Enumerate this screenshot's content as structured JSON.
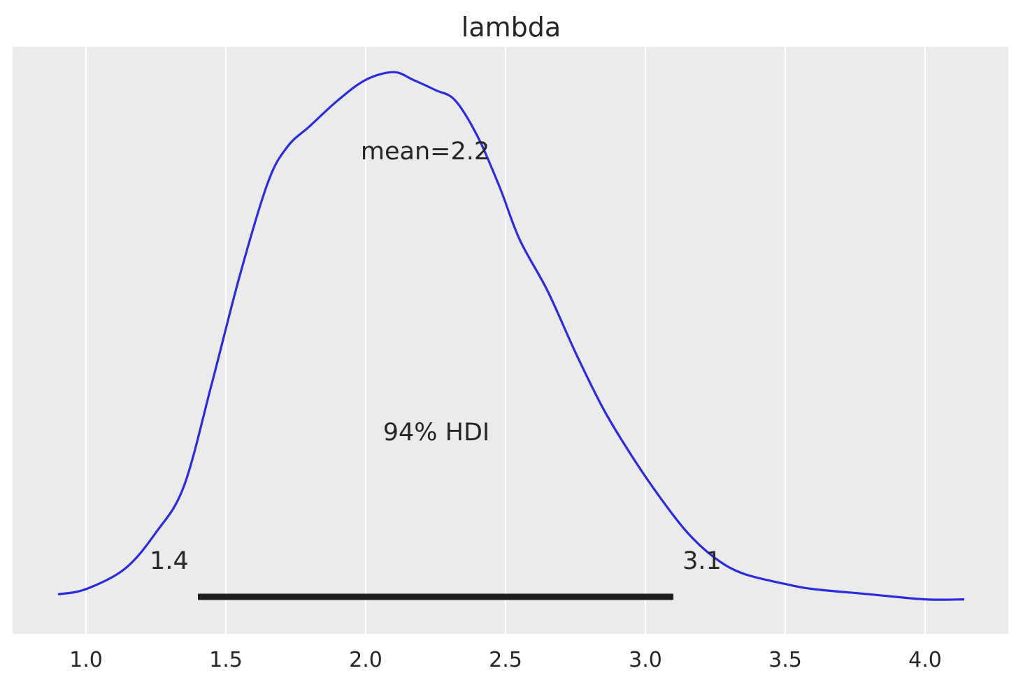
{
  "chart_data": {
    "type": "line",
    "title": "lambda",
    "xlabel": "",
    "ylabel": "",
    "xlim": [
      0.8,
      4.3
    ],
    "grid": "vertical",
    "background": "#ebebeb",
    "x_ticks": [
      {
        "value": 1.0,
        "label": "1.0"
      },
      {
        "value": 1.5,
        "label": "1.5"
      },
      {
        "value": 2.0,
        "label": "2.0"
      },
      {
        "value": 2.5,
        "label": "2.5"
      },
      {
        "value": 3.0,
        "label": "3.0"
      },
      {
        "value": 3.5,
        "label": "3.5"
      },
      {
        "value": 4.0,
        "label": "4.0"
      }
    ],
    "series": [
      {
        "color": "#2a2ae0",
        "x": [
          0.9,
          1.0,
          1.14,
          1.25,
          1.35,
          1.45,
          1.55,
          1.65,
          1.72,
          1.8,
          1.9,
          2.0,
          2.1,
          2.17,
          2.25,
          2.32,
          2.4,
          2.48,
          2.55,
          2.65,
          2.75,
          2.85,
          2.95,
          3.05,
          3.15,
          3.25,
          3.35,
          3.5,
          3.6,
          3.8,
          4.0,
          4.14
        ],
        "y": [
          0.02,
          0.03,
          0.07,
          0.14,
          0.23,
          0.43,
          0.64,
          0.82,
          0.89,
          0.93,
          0.98,
          1.02,
          1.035,
          1.02,
          1.0,
          0.98,
          0.91,
          0.81,
          0.71,
          0.61,
          0.49,
          0.38,
          0.29,
          0.21,
          0.14,
          0.09,
          0.06,
          0.04,
          0.03,
          0.02,
          0.01,
          0.01
        ]
      }
    ],
    "mean_label": "mean=2.2",
    "hdi": {
      "label": "94% HDI",
      "low": 1.4,
      "high": 3.1,
      "low_label": "1.4",
      "high_label": "3.1",
      "color": "#1e1e1e"
    }
  }
}
